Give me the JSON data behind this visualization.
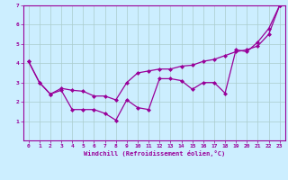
{
  "xlabel": "Windchill (Refroidissement éolien,°C)",
  "background_color": "#cceeff",
  "line_color": "#990099",
  "grid_color": "#aacccc",
  "line1_x": [
    0,
    1,
    2,
    3,
    4,
    5,
    6,
    7,
    8,
    9,
    10,
    11,
    12,
    13,
    14,
    15,
    16,
    17,
    18,
    19,
    20,
    21,
    22,
    23
  ],
  "line1_y": [
    4.1,
    3.0,
    2.4,
    2.6,
    1.6,
    1.6,
    1.6,
    1.4,
    1.05,
    2.1,
    1.7,
    1.6,
    3.2,
    3.2,
    3.1,
    2.65,
    3.0,
    3.0,
    2.45,
    4.7,
    4.6,
    5.1,
    5.8,
    7.0
  ],
  "line2_x": [
    0,
    1,
    2,
    3,
    4,
    5,
    6,
    7,
    8,
    9,
    10,
    11,
    12,
    13,
    14,
    15,
    16,
    17,
    18,
    19,
    20,
    21,
    22,
    23
  ],
  "line2_y": [
    4.1,
    3.0,
    2.4,
    2.7,
    2.6,
    2.55,
    2.3,
    2.3,
    2.1,
    3.0,
    3.5,
    3.6,
    3.7,
    3.7,
    3.85,
    3.9,
    4.1,
    4.2,
    4.4,
    4.6,
    4.7,
    4.9,
    5.5,
    7.0
  ],
  "ylim": [
    0,
    7
  ],
  "xlim_min": -0.5,
  "xlim_max": 23.5,
  "yticks": [
    1,
    2,
    3,
    4,
    5,
    6,
    7
  ],
  "xticks": [
    0,
    1,
    2,
    3,
    4,
    5,
    6,
    7,
    8,
    9,
    10,
    11,
    12,
    13,
    14,
    15,
    16,
    17,
    18,
    19,
    20,
    21,
    22,
    23
  ]
}
